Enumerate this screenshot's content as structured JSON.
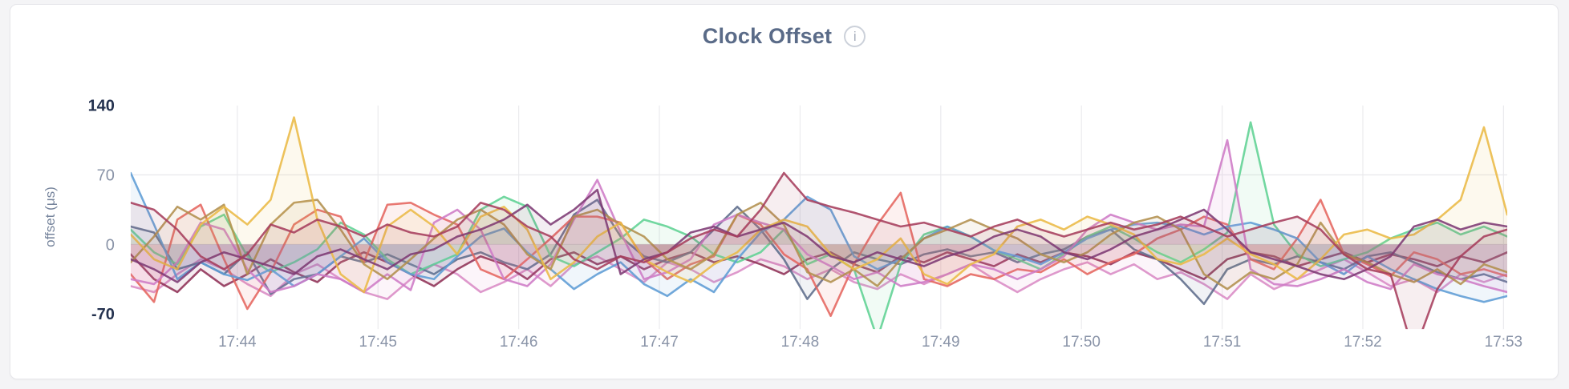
{
  "panel": {
    "title": "Clock Offset",
    "info_icon_glyph": "i"
  },
  "chart_data": {
    "type": "line",
    "title": "Clock Offset",
    "xlabel": "",
    "ylabel": "offset (μs)",
    "ylim": [
      -70,
      140
    ],
    "x_range": [
      "17:43:14",
      "17:53:03"
    ],
    "x_interval_seconds": 10,
    "grid": true,
    "legend": "none",
    "tick_color_emphasis": "#24324f",
    "tick_color_normal": "#8a94a8",
    "grid_color": "#ebebee",
    "y_ticks": [
      {
        "value": 140,
        "emphasis": true,
        "grid": false
      },
      {
        "value": 70,
        "emphasis": false,
        "grid": true
      },
      {
        "value": 0,
        "emphasis": false,
        "grid": true
      },
      {
        "value": -70,
        "emphasis": true,
        "grid": false
      }
    ],
    "x_ticks": [
      {
        "label": "17:44",
        "index": 4.57
      },
      {
        "label": "17:45",
        "index": 10.6
      },
      {
        "label": "17:46",
        "index": 16.63
      },
      {
        "label": "17:47",
        "index": 22.66
      },
      {
        "label": "17:48",
        "index": 28.69
      },
      {
        "label": "17:49",
        "index": 34.72
      },
      {
        "label": "17:50",
        "index": 40.75
      },
      {
        "label": "17:51",
        "index": 46.78
      },
      {
        "label": "17:52",
        "index": 52.81
      },
      {
        "label": "17:53",
        "index": 58.84
      }
    ],
    "series": [
      {
        "name": "series-1-pink",
        "color": "#da8bc5",
        "values": [
          -42,
          -48,
          -30,
          -15,
          -25,
          -40,
          -52,
          -30,
          -20,
          -35,
          -48,
          -55,
          -35,
          -20,
          -30,
          -48,
          -38,
          -25,
          -42,
          -20,
          -12,
          -25,
          -38,
          -18,
          -25,
          -38,
          -28,
          -15,
          -22,
          -35,
          -25,
          -38,
          -45,
          -30,
          -40,
          -30,
          -20,
          -35,
          -48,
          -35,
          -25,
          -18,
          -30,
          -20,
          -35,
          -28,
          -40,
          -55,
          -30,
          -45,
          -35,
          -25,
          -15,
          -28,
          -42,
          -35,
          -48,
          -30,
          -38,
          -30
        ]
      },
      {
        "name": "series-2-plum",
        "color": "#8f3156",
        "values": [
          -10,
          -35,
          -48,
          -25,
          -42,
          -30,
          -15,
          -28,
          -38,
          -18,
          -8,
          -18,
          -30,
          -42,
          -25,
          -12,
          -20,
          -35,
          -15,
          -8,
          -20,
          -12,
          -25,
          -15,
          -8,
          -18,
          -12,
          -20,
          -30,
          -15,
          -8,
          -20,
          -28,
          -12,
          -18,
          -8,
          -15,
          -22,
          -10,
          -18,
          -8,
          -12,
          -20,
          -8,
          -15,
          -25,
          -35,
          -15,
          -8,
          -12,
          -22,
          -15,
          -8,
          -18,
          -10,
          -15,
          -22,
          -12,
          -18,
          -8
        ]
      },
      {
        "name": "series-3-slate",
        "color": "#5d6c8b",
        "values": [
          18,
          12,
          -25,
          -18,
          -30,
          -8,
          -50,
          -35,
          -30,
          -12,
          -18,
          -10,
          -20,
          -30,
          -15,
          -8,
          -18,
          -25,
          -10,
          30,
          45,
          8,
          -12,
          -18,
          -8,
          15,
          38,
          15,
          -15,
          -55,
          -25,
          -8,
          -15,
          -20,
          -10,
          -5,
          -12,
          -8,
          -18,
          -10,
          -5,
          8,
          15,
          -5,
          -15,
          -35,
          -60,
          -25,
          -15,
          -20,
          -12,
          -18,
          -25,
          -12,
          -8,
          -18,
          -28,
          -35,
          -30,
          -38
        ]
      },
      {
        "name": "series-4-mint",
        "color": "#5fd193",
        "values": [
          15,
          -8,
          -20,
          18,
          30,
          -12,
          -28,
          -18,
          -5,
          22,
          10,
          -15,
          -30,
          -20,
          -10,
          35,
          48,
          38,
          -12,
          -22,
          -8,
          6,
          25,
          18,
          8,
          -10,
          -18,
          -8,
          15,
          -20,
          -10,
          -25,
          -95,
          -20,
          10,
          18,
          8,
          -6,
          -15,
          -25,
          -10,
          8,
          18,
          6,
          -8,
          -18,
          -5,
          12,
          123,
          20,
          -10,
          -22,
          -15,
          -8,
          6,
          15,
          22,
          10,
          18,
          8
        ]
      },
      {
        "name": "series-5-salmon",
        "color": "#e5655e",
        "values": [
          -30,
          -58,
          25,
          40,
          -15,
          -65,
          -28,
          20,
          35,
          28,
          -18,
          40,
          42,
          30,
          20,
          -25,
          -35,
          -15,
          6,
          28,
          28,
          22,
          -15,
          -35,
          -20,
          -12,
          30,
          20,
          -10,
          -25,
          -72,
          -20,
          20,
          52,
          -35,
          -42,
          -30,
          -35,
          -25,
          -28,
          -15,
          -30,
          -18,
          -10,
          6,
          15,
          28,
          20,
          -15,
          -25,
          6,
          45,
          -10,
          -20,
          -32,
          -8,
          -15,
          -30,
          -25,
          -32
        ]
      },
      {
        "name": "series-6-blue",
        "color": "#5d9cd5",
        "values": [
          72,
          20,
          -35,
          -18,
          -30,
          -36,
          -25,
          -42,
          -30,
          -12,
          6,
          -18,
          -30,
          -35,
          -12,
          8,
          16,
          -8,
          -25,
          -45,
          -30,
          -18,
          -40,
          -52,
          -35,
          -48,
          -15,
          12,
          25,
          48,
          35,
          -12,
          -25,
          -15,
          6,
          18,
          8,
          -6,
          -12,
          -20,
          -8,
          6,
          15,
          20,
          22,
          18,
          10,
          18,
          22,
          15,
          6,
          -18,
          -30,
          -12,
          -25,
          -35,
          -45,
          -52,
          -58,
          -52
        ]
      },
      {
        "name": "series-7-orchid",
        "color": "#ce7bc6",
        "values": [
          -35,
          -40,
          -18,
          22,
          15,
          -25,
          -48,
          -42,
          -30,
          -35,
          -48,
          -30,
          -46,
          22,
          35,
          15,
          -35,
          -42,
          -20,
          25,
          65,
          12,
          -35,
          -28,
          -15,
          20,
          30,
          22,
          15,
          -10,
          -22,
          -35,
          -28,
          -42,
          -38,
          -30,
          -20,
          -25,
          -35,
          -25,
          -12,
          15,
          30,
          22,
          15,
          20,
          18,
          105,
          -25,
          -40,
          -42,
          -35,
          -25,
          -38,
          -45,
          -20,
          -30,
          -35,
          -42,
          -48
        ]
      },
      {
        "name": "series-8-bronze",
        "color": "#b28f4d",
        "values": [
          -18,
          8,
          38,
          25,
          40,
          -30,
          20,
          42,
          45,
          15,
          -20,
          -35,
          -15,
          6,
          25,
          35,
          20,
          -10,
          -25,
          28,
          35,
          20,
          8,
          -15,
          -25,
          -10,
          30,
          42,
          20,
          -28,
          -38,
          -25,
          -42,
          -15,
          6,
          15,
          25,
          15,
          6,
          -10,
          -18,
          -8,
          10,
          22,
          28,
          15,
          -30,
          -45,
          -28,
          -35,
          -20,
          22,
          -10,
          -18,
          -30,
          -38,
          -25,
          -40,
          -20,
          -28
        ]
      },
      {
        "name": "series-9-gold",
        "color": "#eaba45",
        "values": [
          10,
          -15,
          -25,
          20,
          38,
          20,
          45,
          128,
          25,
          -30,
          -48,
          18,
          35,
          18,
          -10,
          28,
          38,
          15,
          -35,
          -18,
          8,
          22,
          -15,
          -28,
          -38,
          -20,
          -8,
          15,
          25,
          18,
          -10,
          -25,
          -15,
          6,
          -30,
          -40,
          -20,
          -10,
          18,
          25,
          15,
          28,
          20,
          10,
          -15,
          -20,
          -10,
          6,
          -10,
          -20,
          -35,
          -15,
          10,
          15,
          6,
          10,
          25,
          45,
          118,
          30
        ]
      },
      {
        "name": "series-10-darkpurple",
        "color": "#7d3a74",
        "values": [
          -15,
          -25,
          -38,
          -18,
          -8,
          -15,
          -22,
          -30,
          -12,
          -5,
          -15,
          -25,
          -10,
          -5,
          8,
          15,
          25,
          40,
          20,
          35,
          55,
          -30,
          -15,
          -8,
          12,
          18,
          8,
          15,
          22,
          8,
          -12,
          -18,
          -8,
          -15,
          -22,
          -12,
          -5,
          8,
          15,
          8,
          -8,
          -15,
          -5,
          8,
          15,
          25,
          35,
          15,
          -8,
          -15,
          -22,
          -30,
          -35,
          -25,
          -12,
          18,
          25,
          15,
          22,
          18
        ]
      },
      {
        "name": "series-11-wine",
        "color": "#a63e5c",
        "values": [
          42,
          35,
          15,
          -12,
          -25,
          -10,
          20,
          12,
          25,
          18,
          8,
          20,
          12,
          8,
          18,
          42,
          35,
          18,
          8,
          -15,
          -25,
          -12,
          -18,
          -8,
          6,
          15,
          8,
          35,
          72,
          45,
          38,
          32,
          25,
          18,
          22,
          15,
          8,
          18,
          25,
          15,
          8,
          15,
          22,
          15,
          20,
          28,
          18,
          8,
          15,
          22,
          28,
          15,
          -10,
          -25,
          -30,
          -110,
          -45,
          -12,
          8,
          15
        ]
      }
    ]
  }
}
